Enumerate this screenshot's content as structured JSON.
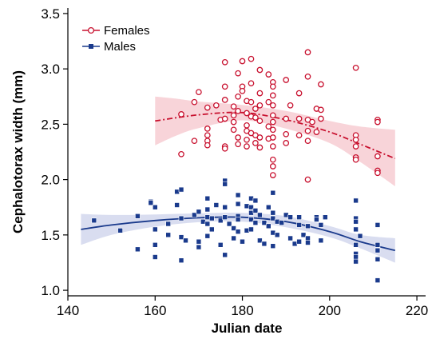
{
  "chart_data": {
    "type": "scatter",
    "title": "",
    "xlabel": "Julian date",
    "ylabel": "Cephalotorax width (mm)",
    "xlim": [
      140,
      222
    ],
    "ylim": [
      0.95,
      3.55
    ],
    "x_ticks": [
      140,
      160,
      180,
      200,
      220
    ],
    "y_ticks": [
      1.0,
      1.5,
      2.0,
      2.5,
      3.0,
      3.5
    ],
    "x_tick_labels": [
      "140",
      "160",
      "180",
      "200",
      "220"
    ],
    "y_tick_labels": [
      "1.0",
      "1.5",
      "2.0",
      "2.5",
      "3.0",
      "3.5"
    ],
    "grid": false,
    "legend_position": "top-left",
    "series": [
      {
        "name": "Females",
        "color": "#c8102e",
        "marker": "open-circle",
        "fit_style": "dash-dot",
        "points": [
          [
            166,
            2.59
          ],
          [
            166,
            2.23
          ],
          [
            169,
            2.35
          ],
          [
            169,
            2.7
          ],
          [
            170,
            2.79
          ],
          [
            172,
            2.65
          ],
          [
            172,
            2.4
          ],
          [
            172,
            2.35
          ],
          [
            172,
            2.31
          ],
          [
            172,
            2.46
          ],
          [
            174,
            2.67
          ],
          [
            175,
            2.54
          ],
          [
            176,
            3.06
          ],
          [
            176,
            2.84
          ],
          [
            176,
            2.72
          ],
          [
            176,
            2.55
          ],
          [
            176,
            2.3
          ],
          [
            176,
            2.28
          ],
          [
            178,
            2.66
          ],
          [
            178,
            2.58
          ],
          [
            178,
            2.52
          ],
          [
            178,
            2.45
          ],
          [
            179,
            2.96
          ],
          [
            179,
            2.75
          ],
          [
            179,
            2.62
          ],
          [
            179,
            2.38
          ],
          [
            179,
            2.32
          ],
          [
            180,
            3.07
          ],
          [
            180,
            2.84
          ],
          [
            180,
            2.8
          ],
          [
            181,
            2.71
          ],
          [
            181,
            2.6
          ],
          [
            181,
            2.49
          ],
          [
            181,
            2.44
          ],
          [
            181,
            2.36
          ],
          [
            181,
            2.3
          ],
          [
            182,
            3.09
          ],
          [
            182,
            2.87
          ],
          [
            182,
            2.7
          ],
          [
            182,
            2.57
          ],
          [
            182,
            2.42
          ],
          [
            183,
            2.64
          ],
          [
            183,
            2.56
          ],
          [
            183,
            2.4
          ],
          [
            183,
            2.33
          ],
          [
            184,
            2.99
          ],
          [
            184,
            2.78
          ],
          [
            184,
            2.67
          ],
          [
            184,
            2.53
          ],
          [
            184,
            2.38
          ],
          [
            184,
            2.29
          ],
          [
            186,
            2.95
          ],
          [
            186,
            2.7
          ],
          [
            186,
            2.48
          ],
          [
            186,
            2.37
          ],
          [
            187,
            2.88
          ],
          [
            187,
            2.84
          ],
          [
            187,
            2.76
          ],
          [
            187,
            2.67
          ],
          [
            187,
            2.58
          ],
          [
            187,
            2.52
          ],
          [
            187,
            2.45
          ],
          [
            187,
            2.38
          ],
          [
            187,
            2.3
          ],
          [
            187,
            2.18
          ],
          [
            187,
            2.12
          ],
          [
            187,
            2.04
          ],
          [
            190,
            2.9
          ],
          [
            190,
            2.55
          ],
          [
            190,
            2.41
          ],
          [
            190,
            2.33
          ],
          [
            191,
            2.67
          ],
          [
            193,
            2.78
          ],
          [
            193,
            2.55
          ],
          [
            193,
            2.4
          ],
          [
            195,
            3.15
          ],
          [
            195,
            2.93
          ],
          [
            195,
            2.54
          ],
          [
            195,
            2.44
          ],
          [
            195,
            2.35
          ],
          [
            195,
            2.0
          ],
          [
            196,
            2.52
          ],
          [
            197,
            2.64
          ],
          [
            197,
            2.43
          ],
          [
            198,
            2.86
          ],
          [
            198,
            2.63
          ],
          [
            198,
            2.55
          ],
          [
            206,
            2.4
          ],
          [
            206,
            2.36
          ],
          [
            206,
            2.3
          ],
          [
            206,
            2.2
          ],
          [
            206,
            2.18
          ],
          [
            206,
            3.01
          ],
          [
            211,
            2.54
          ],
          [
            211,
            2.52
          ],
          [
            211,
            2.21
          ],
          [
            211,
            2.08
          ],
          [
            211,
            2.06
          ]
        ],
        "fit": [
          [
            160,
            2.53
          ],
          [
            170,
            2.585
          ],
          [
            180,
            2.605
          ],
          [
            190,
            2.54
          ],
          [
            200,
            2.43
          ],
          [
            207,
            2.32
          ],
          [
            215,
            2.19
          ]
        ],
        "ci_upper": [
          [
            160,
            2.75
          ],
          [
            165,
            2.73
          ],
          [
            170,
            2.705
          ],
          [
            180,
            2.675
          ],
          [
            190,
            2.62
          ],
          [
            200,
            2.53
          ],
          [
            207,
            2.48
          ],
          [
            215,
            2.45
          ]
        ],
        "ci_lower": [
          [
            160,
            2.31
          ],
          [
            165,
            2.4
          ],
          [
            170,
            2.465
          ],
          [
            180,
            2.535
          ],
          [
            190,
            2.46
          ],
          [
            200,
            2.33
          ],
          [
            207,
            2.16
          ],
          [
            215,
            1.94
          ]
        ]
      },
      {
        "name": "Males",
        "color": "#1a3a8c",
        "marker": "filled-square",
        "fit_style": "solid",
        "points": [
          [
            146,
            1.63
          ],
          [
            152,
            1.54
          ],
          [
            156,
            1.67
          ],
          [
            156,
            1.37
          ],
          [
            159,
            1.8
          ],
          [
            159,
            1.79
          ],
          [
            160,
            1.75
          ],
          [
            160,
            1.55
          ],
          [
            160,
            1.41
          ],
          [
            160,
            1.3
          ],
          [
            163,
            1.5
          ],
          [
            163,
            1.6
          ],
          [
            165,
            1.89
          ],
          [
            165,
            1.77
          ],
          [
            166,
            1.91
          ],
          [
            166,
            1.65
          ],
          [
            166,
            1.48
          ],
          [
            166,
            1.27
          ],
          [
            167,
            1.45
          ],
          [
            169,
            1.68
          ],
          [
            170,
            1.71
          ],
          [
            170,
            1.44
          ],
          [
            170,
            1.39
          ],
          [
            171,
            1.62
          ],
          [
            172,
            1.83
          ],
          [
            172,
            1.73
          ],
          [
            172,
            1.66
          ],
          [
            172,
            1.6
          ],
          [
            172,
            1.49
          ],
          [
            173,
            1.65
          ],
          [
            173,
            1.55
          ],
          [
            174,
            1.77
          ],
          [
            175,
            1.63
          ],
          [
            175,
            1.41
          ],
          [
            176,
            1.99
          ],
          [
            176,
            1.96
          ],
          [
            176,
            1.75
          ],
          [
            176,
            1.66
          ],
          [
            176,
            1.32
          ],
          [
            177,
            1.6
          ],
          [
            178,
            1.56
          ],
          [
            178,
            1.47
          ],
          [
            179,
            1.86
          ],
          [
            179,
            1.78
          ],
          [
            179,
            1.67
          ],
          [
            179,
            1.64
          ],
          [
            179,
            1.53
          ],
          [
            180,
            1.44
          ],
          [
            181,
            1.76
          ],
          [
            181,
            1.54
          ],
          [
            182,
            1.83
          ],
          [
            182,
            1.75
          ],
          [
            182,
            1.7
          ],
          [
            182,
            1.64
          ],
          [
            182,
            1.55
          ],
          [
            183,
            1.81
          ],
          [
            183,
            1.72
          ],
          [
            183,
            1.61
          ],
          [
            184,
            1.68
          ],
          [
            184,
            1.45
          ],
          [
            185,
            1.42
          ],
          [
            185,
            1.61
          ],
          [
            186,
            1.75
          ],
          [
            186,
            1.58
          ],
          [
            187,
            1.88
          ],
          [
            187,
            1.7
          ],
          [
            187,
            1.65
          ],
          [
            187,
            1.52
          ],
          [
            187,
            1.4
          ],
          [
            188,
            1.62
          ],
          [
            188,
            1.5
          ],
          [
            189,
            1.61
          ],
          [
            190,
            1.68
          ],
          [
            191,
            1.66
          ],
          [
            191,
            1.47
          ],
          [
            192,
            1.42
          ],
          [
            193,
            1.66
          ],
          [
            193,
            1.59
          ],
          [
            193,
            1.44
          ],
          [
            194,
            1.5
          ],
          [
            195,
            1.47
          ],
          [
            195,
            1.43
          ],
          [
            195,
            1.58
          ],
          [
            197,
            1.66
          ],
          [
            197,
            1.64
          ],
          [
            198,
            1.45
          ],
          [
            198,
            1.59
          ],
          [
            199,
            1.66
          ],
          [
            206,
            1.81
          ],
          [
            206,
            1.65
          ],
          [
            206,
            1.62
          ],
          [
            206,
            1.55
          ],
          [
            206,
            1.41
          ],
          [
            206,
            1.33
          ],
          [
            206,
            1.3
          ],
          [
            206,
            1.26
          ],
          [
            207,
            1.49
          ],
          [
            211,
            1.59
          ],
          [
            211,
            1.41
          ],
          [
            211,
            1.36
          ],
          [
            211,
            1.28
          ],
          [
            211,
            1.09
          ]
        ],
        "fit": [
          [
            143,
            1.55
          ],
          [
            150,
            1.59
          ],
          [
            160,
            1.63
          ],
          [
            170,
            1.655
          ],
          [
            180,
            1.66
          ],
          [
            190,
            1.62
          ],
          [
            200,
            1.53
          ],
          [
            207,
            1.44
          ],
          [
            215,
            1.36
          ]
        ],
        "ci_upper": [
          [
            143,
            1.69
          ],
          [
            150,
            1.68
          ],
          [
            160,
            1.685
          ],
          [
            170,
            1.695
          ],
          [
            180,
            1.7
          ],
          [
            190,
            1.67
          ],
          [
            200,
            1.58
          ],
          [
            207,
            1.5
          ],
          [
            215,
            1.47
          ]
        ],
        "ci_lower": [
          [
            143,
            1.41
          ],
          [
            150,
            1.5
          ],
          [
            160,
            1.575
          ],
          [
            170,
            1.615
          ],
          [
            180,
            1.62
          ],
          [
            190,
            1.57
          ],
          [
            200,
            1.48
          ],
          [
            207,
            1.38
          ],
          [
            215,
            1.25
          ]
        ]
      }
    ]
  }
}
